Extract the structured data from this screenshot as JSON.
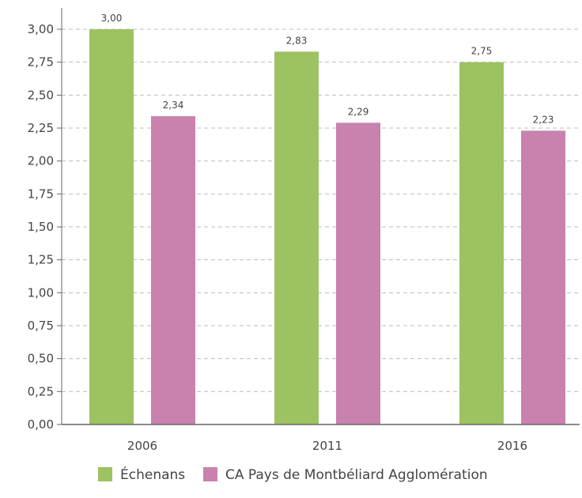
{
  "chart_data": {
    "type": "bar",
    "title": "",
    "xlabel": "",
    "ylabel": "",
    "categories": [
      "2006",
      "2011",
      "2016"
    ],
    "series": [
      {
        "name": "Échenans",
        "values": [
          3.0,
          2.83,
          2.75
        ],
        "value_labels": [
          "3,00",
          "2,83",
          "2,75"
        ],
        "color": "#9dc261"
      },
      {
        "name": "CA Pays de Montbéliard Agglomération",
        "values": [
          2.34,
          2.29,
          2.23
        ],
        "value_labels": [
          "2,34",
          "2,29",
          "2,23"
        ],
        "color": "#c882ad"
      }
    ],
    "ylim": [
      0,
      3.0
    ],
    "yticks": [
      0,
      0.25,
      0.5,
      0.75,
      1.0,
      1.25,
      1.5,
      1.75,
      2.0,
      2.25,
      2.5,
      2.75,
      3.0
    ],
    "ytick_labels": [
      "0,00",
      "0,25",
      "0,50",
      "0,75",
      "1,00",
      "1,25",
      "1,50",
      "1,75",
      "2,00",
      "2,25",
      "2,50",
      "2,75",
      "3,00"
    ],
    "grid": true,
    "grid_style": "dashed",
    "legend": {
      "position": "bottom",
      "entries": [
        "Échenans",
        "CA Pays de Montbéliard Agglomération"
      ]
    },
    "colors": {
      "axis": "#666666",
      "grid": "#bdbdbd",
      "text": "#444444"
    }
  }
}
